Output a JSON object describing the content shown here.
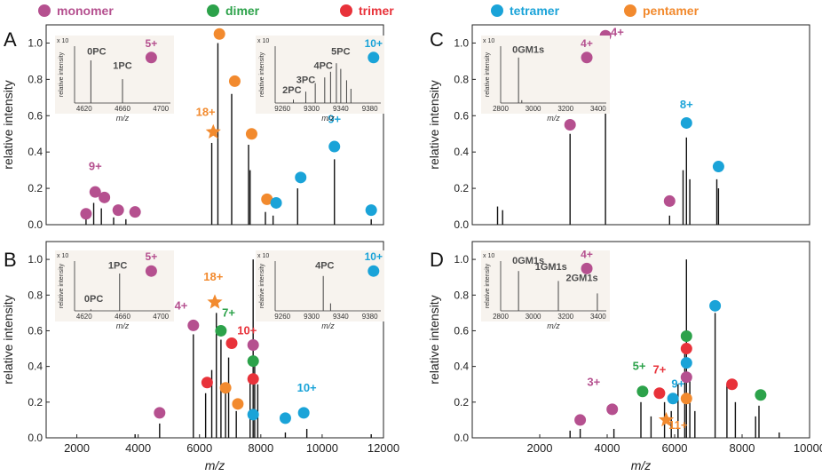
{
  "legend": [
    {
      "label": "monomer",
      "color": "#b5508f"
    },
    {
      "label": "dimer",
      "color": "#2ca24a"
    },
    {
      "label": "trimer",
      "color": "#e8323a"
    },
    {
      "label": "tetramer",
      "color": "#1aa3d8"
    },
    {
      "label": "pentamer",
      "color": "#f28a2e"
    }
  ],
  "colors": {
    "monomer": "#b5508f",
    "dimer": "#2ca24a",
    "trimer": "#e8323a",
    "tetramer": "#1aa3d8",
    "pentamer": "#f28a2e",
    "text_label": "#4d4d4d"
  },
  "chart_data": [
    {
      "panel": "A",
      "type": "line",
      "xlabel": "m/z",
      "ylabel": "relative intensity",
      "xlim": [
        1000,
        12000
      ],
      "ylim": [
        0,
        1.1
      ],
      "yticks": [
        "0.0",
        "0.2",
        "0.4",
        "0.6",
        "0.8",
        "1.0"
      ],
      "xticks": [],
      "peaks": [
        [
          2300,
          0.05
        ],
        [
          2550,
          0.12
        ],
        [
          2800,
          0.09
        ],
        [
          3200,
          0.04
        ],
        [
          3600,
          0.03
        ],
        [
          6400,
          0.45
        ],
        [
          6600,
          1.0
        ],
        [
          7050,
          0.72
        ],
        [
          7600,
          0.44
        ],
        [
          7650,
          0.3
        ],
        [
          8150,
          0.07
        ],
        [
          8400,
          0.05
        ],
        [
          9200,
          0.2
        ],
        [
          10400,
          0.36
        ],
        [
          11600,
          0.03
        ]
      ],
      "markers": [
        {
          "x": 2300,
          "y": 0.06,
          "species": "monomer"
        },
        {
          "x": 2600,
          "y": 0.18,
          "species": "monomer"
        },
        {
          "x": 2900,
          "y": 0.15,
          "species": "monomer"
        },
        {
          "x": 3350,
          "y": 0.08,
          "species": "monomer"
        },
        {
          "x": 3900,
          "y": 0.07,
          "species": "monomer"
        },
        {
          "x": 6450,
          "y": 0.51,
          "species": "pentamer",
          "star": true
        },
        {
          "x": 6650,
          "y": 1.05,
          "species": "pentamer"
        },
        {
          "x": 7150,
          "y": 0.79,
          "species": "pentamer"
        },
        {
          "x": 7700,
          "y": 0.5,
          "species": "pentamer"
        },
        {
          "x": 8200,
          "y": 0.14,
          "species": "pentamer"
        },
        {
          "x": 8500,
          "y": 0.12,
          "species": "tetramer"
        },
        {
          "x": 9300,
          "y": 0.26,
          "species": "tetramer"
        },
        {
          "x": 10400,
          "y": 0.43,
          "species": "tetramer"
        },
        {
          "x": 11600,
          "y": 0.08,
          "species": "tetramer"
        }
      ],
      "labels": [
        {
          "text": "9+",
          "x": 2600,
          "y": 0.3,
          "species": "monomer"
        },
        {
          "text": "18+",
          "x": 6200,
          "y": 0.6,
          "species": "pentamer"
        },
        {
          "text": "9+",
          "x": 10400,
          "y": 0.56,
          "species": "tetramer"
        }
      ],
      "insets": [
        {
          "xlim": [
            4610,
            4710
          ],
          "xticks": [
            "4620",
            "4660",
            "4700"
          ],
          "ylabel": "relative intensity",
          "xlabel": "m/z",
          "exp": "x 10",
          "peaks": [
            [
              4627,
              0.75
            ],
            [
              4660,
              0.42
            ]
          ],
          "labels": [
            {
              "text": "0PC",
              "x": 4633,
              "y": 0.85
            },
            {
              "text": "1PC",
              "x": 4660,
              "y": 0.6
            }
          ],
          "marker": {
            "text": "5+",
            "x": 4690,
            "y": 0.8,
            "species": "monomer"
          }
        },
        {
          "xlim": [
            9250,
            9395
          ],
          "xticks": [
            "9260",
            "9300",
            "9340",
            "9380"
          ],
          "ylabel": "relative intensity",
          "xlabel": "m/z",
          "exp": "x 10",
          "peaks": [
            [
              9275,
              0.06
            ],
            [
              9292,
              0.2
            ],
            [
              9305,
              0.35
            ],
            [
              9318,
              0.45
            ],
            [
              9326,
              0.55
            ],
            [
              9334,
              0.7
            ],
            [
              9340,
              0.6
            ],
            [
              9348,
              0.4
            ],
            [
              9354,
              0.25
            ]
          ],
          "labels": [
            {
              "text": "2PC",
              "x": 9273,
              "y": 0.17
            },
            {
              "text": "3PC",
              "x": 9292,
              "y": 0.35
            },
            {
              "text": "4PC",
              "x": 9316,
              "y": 0.6
            },
            {
              "text": "5PC",
              "x": 9340,
              "y": 0.85
            }
          ],
          "marker": {
            "text": "10+",
            "x": 9385,
            "y": 0.8,
            "species": "tetramer"
          }
        }
      ]
    },
    {
      "panel": "B",
      "type": "line",
      "xlabel": "m/z",
      "ylabel": "relative intensity",
      "xlim": [
        1000,
        12000
      ],
      "ylim": [
        0,
        1.1
      ],
      "yticks": [
        "0.0",
        "0.2",
        "0.4",
        "0.6",
        "0.8",
        "1.0"
      ],
      "xticks": [
        "2000",
        "4000",
        "6000",
        "8000",
        "10000",
        "12000"
      ],
      "peaks": [
        [
          3900,
          0.02
        ],
        [
          4700,
          0.08
        ],
        [
          5800,
          0.58
        ],
        [
          6200,
          0.25
        ],
        [
          6400,
          0.38
        ],
        [
          6550,
          0.7
        ],
        [
          6700,
          0.55
        ],
        [
          6850,
          0.25
        ],
        [
          6950,
          0.45
        ],
        [
          7200,
          0.15
        ],
        [
          7650,
          0.35
        ],
        [
          7750,
          1.0
        ],
        [
          7800,
          0.45
        ],
        [
          7900,
          0.3
        ],
        [
          8800,
          0.03
        ],
        [
          9500,
          0.05
        ],
        [
          11600,
          0.02
        ]
      ],
      "markers": [
        {
          "x": 4700,
          "y": 0.14,
          "species": "monomer"
        },
        {
          "x": 5800,
          "y": 0.63,
          "species": "monomer"
        },
        {
          "x": 7750,
          "y": 0.52,
          "species": "monomer"
        },
        {
          "x": 6700,
          "y": 0.6,
          "species": "dimer"
        },
        {
          "x": 7750,
          "y": 0.43,
          "species": "dimer"
        },
        {
          "x": 6250,
          "y": 0.31,
          "species": "trimer"
        },
        {
          "x": 7050,
          "y": 0.53,
          "species": "trimer"
        },
        {
          "x": 7750,
          "y": 0.33,
          "species": "trimer"
        },
        {
          "x": 6500,
          "y": 0.76,
          "species": "pentamer",
          "star": true
        },
        {
          "x": 6850,
          "y": 0.28,
          "species": "pentamer"
        },
        {
          "x": 7250,
          "y": 0.19,
          "species": "pentamer"
        },
        {
          "x": 7750,
          "y": 0.13,
          "species": "tetramer"
        },
        {
          "x": 8800,
          "y": 0.11,
          "species": "tetramer"
        },
        {
          "x": 9400,
          "y": 0.14,
          "species": "tetramer"
        }
      ],
      "labels": [
        {
          "text": "4+",
          "x": 5400,
          "y": 0.72,
          "species": "monomer"
        },
        {
          "text": "18+",
          "x": 6450,
          "y": 0.88,
          "species": "pentamer"
        },
        {
          "text": "7+",
          "x": 6950,
          "y": 0.68,
          "species": "dimer"
        },
        {
          "text": "10+",
          "x": 7550,
          "y": 0.58,
          "species": "trimer"
        },
        {
          "text": "10+",
          "x": 9500,
          "y": 0.26,
          "species": "tetramer"
        }
      ],
      "insets": [
        {
          "xlim": [
            4610,
            4710
          ],
          "xticks": [
            "4620",
            "4660",
            "4700"
          ],
          "ylabel": "relative intensity",
          "xlabel": "m/z",
          "exp": "x 10",
          "peaks": [
            [
              4627,
              0.03
            ],
            [
              4657,
              0.75
            ]
          ],
          "labels": [
            {
              "text": "0PC",
              "x": 4630,
              "y": 0.18
            },
            {
              "text": "1PC",
              "x": 4655,
              "y": 0.85
            }
          ],
          "marker": {
            "text": "5+",
            "x": 4690,
            "y": 0.8,
            "species": "monomer"
          }
        },
        {
          "xlim": [
            9250,
            9395
          ],
          "xticks": [
            "9260",
            "9300",
            "9340",
            "9380"
          ],
          "ylabel": "relative intensity",
          "xlabel": "m/z",
          "exp": "x 10",
          "peaks": [
            [
              9316,
              0.7
            ],
            [
              9326,
              0.15
            ]
          ],
          "labels": [
            {
              "text": "4PC",
              "x": 9318,
              "y": 0.85
            }
          ],
          "marker": {
            "text": "10+",
            "x": 9385,
            "y": 0.8,
            "species": "tetramer"
          }
        }
      ]
    },
    {
      "panel": "C",
      "type": "line",
      "xlabel": "m/z",
      "ylabel": "relative intensity",
      "xlim": [
        0,
        10000
      ],
      "ylim": [
        0,
        1.1
      ],
      "yticks": [
        "0.0",
        "0.2",
        "0.4",
        "0.6",
        "0.8",
        "1.0"
      ],
      "xticks": [],
      "peaks": [
        [
          750,
          0.1
        ],
        [
          900,
          0.08
        ],
        [
          2900,
          0.5
        ],
        [
          3950,
          1.0
        ],
        [
          5850,
          0.05
        ],
        [
          6250,
          0.3
        ],
        [
          6350,
          0.48
        ],
        [
          6450,
          0.25
        ],
        [
          7250,
          0.25
        ],
        [
          7300,
          0.2
        ]
      ],
      "markers": [
        {
          "x": 2900,
          "y": 0.55,
          "species": "monomer"
        },
        {
          "x": 3950,
          "y": 1.04,
          "species": "monomer"
        },
        {
          "x": 5850,
          "y": 0.13,
          "species": "monomer"
        },
        {
          "x": 6350,
          "y": 0.56,
          "species": "tetramer"
        },
        {
          "x": 7300,
          "y": 0.32,
          "species": "tetramer"
        }
      ],
      "labels": [
        {
          "text": "4+",
          "x": 4300,
          "y": 1.04,
          "species": "monomer"
        },
        {
          "text": "8+",
          "x": 6350,
          "y": 0.64,
          "species": "tetramer"
        }
      ],
      "insets": [
        {
          "xlim": [
            2800,
            3450
          ],
          "xticks": [
            "2800",
            "3000",
            "3200",
            "3400"
          ],
          "ylabel": "relative intensity",
          "xlabel": "m/z",
          "exp": "x 10",
          "peaks": [
            [
              2910,
              0.8
            ],
            [
              2930,
              0.05
            ]
          ],
          "labels": [
            {
              "text": "0GM1s",
              "x": 2970,
              "y": 0.88
            }
          ],
          "marker": {
            "text": "4+",
            "x": 3330,
            "y": 0.8,
            "species": "monomer"
          }
        }
      ]
    },
    {
      "panel": "D",
      "type": "line",
      "xlabel": "m/z",
      "ylabel": "relative intensity",
      "xlim": [
        0,
        10000
      ],
      "ylim": [
        0,
        1.1
      ],
      "yticks": [
        "0.0",
        "0.2",
        "0.4",
        "0.6",
        "0.8",
        "1.0"
      ],
      "xticks": [
        "2000",
        "4000",
        "6000",
        "8000",
        "10000"
      ],
      "peaks": [
        [
          2900,
          0.04
        ],
        [
          3200,
          0.05
        ],
        [
          4200,
          0.05
        ],
        [
          5000,
          0.2
        ],
        [
          5300,
          0.12
        ],
        [
          5700,
          0.2
        ],
        [
          5900,
          0.15
        ],
        [
          6100,
          0.3
        ],
        [
          6300,
          0.5
        ],
        [
          6350,
          1.0
        ],
        [
          6450,
          0.35
        ],
        [
          6600,
          0.15
        ],
        [
          7200,
          0.7
        ],
        [
          7550,
          0.3
        ],
        [
          7800,
          0.2
        ],
        [
          8400,
          0.12
        ],
        [
          8500,
          0.18
        ],
        [
          9100,
          0.03
        ]
      ],
      "markers": [
        {
          "x": 3200,
          "y": 0.1,
          "species": "monomer"
        },
        {
          "x": 4150,
          "y": 0.16,
          "species": "monomer"
        },
        {
          "x": 6350,
          "y": 0.34,
          "species": "monomer"
        },
        {
          "x": 5050,
          "y": 0.26,
          "species": "dimer"
        },
        {
          "x": 6350,
          "y": 0.57,
          "species": "dimer"
        },
        {
          "x": 8550,
          "y": 0.24,
          "species": "dimer"
        },
        {
          "x": 5550,
          "y": 0.25,
          "species": "trimer"
        },
        {
          "x": 6350,
          "y": 0.5,
          "species": "trimer"
        },
        {
          "x": 7700,
          "y": 0.3,
          "species": "trimer"
        },
        {
          "x": 5950,
          "y": 0.22,
          "species": "tetramer"
        },
        {
          "x": 6350,
          "y": 0.42,
          "species": "tetramer"
        },
        {
          "x": 7200,
          "y": 0.74,
          "species": "tetramer"
        },
        {
          "x": 6350,
          "y": 0.22,
          "species": "pentamer"
        },
        {
          "x": 5750,
          "y": 0.1,
          "species": "pentamer",
          "star": true
        }
      ],
      "labels": [
        {
          "text": "3+",
          "x": 3600,
          "y": 0.29,
          "species": "monomer"
        },
        {
          "text": "5+",
          "x": 4950,
          "y": 0.38,
          "species": "dimer"
        },
        {
          "text": "7+",
          "x": 5550,
          "y": 0.36,
          "species": "trimer"
        },
        {
          "text": "9+",
          "x": 6100,
          "y": 0.28,
          "species": "tetramer"
        },
        {
          "text": "11+",
          "x": 6100,
          "y": 0.05,
          "species": "pentamer"
        }
      ],
      "insets": [
        {
          "xlim": [
            2800,
            3450
          ],
          "xticks": [
            "2800",
            "3000",
            "3200",
            "3400"
          ],
          "ylabel": "relative intensity",
          "xlabel": "m/z",
          "exp": "x 10",
          "peaks": [
            [
              2910,
              0.8
            ],
            [
              3155,
              0.6
            ],
            [
              3395,
              0.35
            ]
          ],
          "labels": [
            {
              "text": "0GM1s",
              "x": 2970,
              "y": 0.95
            },
            {
              "text": "1GM1s",
              "x": 3110,
              "y": 0.82
            },
            {
              "text": "2GM1s",
              "x": 3300,
              "y": 0.6
            }
          ],
          "marker": {
            "text": "4+",
            "x": 3330,
            "y": 0.85,
            "species": "monomer"
          }
        }
      ]
    }
  ]
}
